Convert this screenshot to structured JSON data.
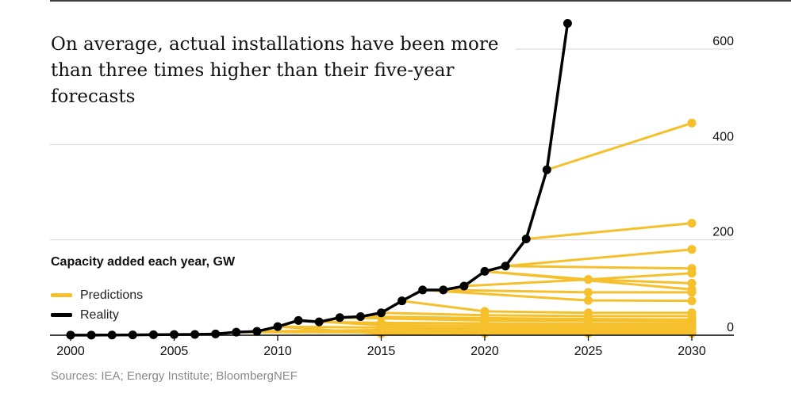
{
  "title": "On average, actual installations have been more than three times higher than their five-year forecasts",
  "legend": {
    "title": "Capacity added each year, GW",
    "items": [
      {
        "label": "Predictions",
        "color": "#f5c02c"
      },
      {
        "label": "Reality",
        "color": "#000000"
      }
    ]
  },
  "source": "Sources: IEA; Energy Institute; BloombergNEF",
  "chart_data": {
    "type": "line",
    "title": "On average, actual installations have been more than three times higher than their five-year forecasts",
    "ylabel": "Capacity added each year, GW",
    "xlim": [
      1999.5,
      2031.5
    ],
    "ylim": [
      0,
      650
    ],
    "x_ticks": [
      2000,
      2005,
      2010,
      2015,
      2020,
      2025,
      2030
    ],
    "y_ticks": [
      0,
      200,
      400,
      600
    ],
    "grid": "horizontal",
    "legend_position": "left",
    "series": [
      {
        "name": "Reality",
        "color": "#000000",
        "x": [
          2000,
          2001,
          2002,
          2003,
          2004,
          2005,
          2006,
          2007,
          2008,
          2009,
          2010,
          2011,
          2012,
          2013,
          2014,
          2015,
          2016,
          2017,
          2018,
          2019,
          2020,
          2021,
          2022,
          2023,
          2024
        ],
        "y": [
          0.3,
          0.3,
          0.4,
          0.6,
          1.0,
          1.4,
          1.6,
          2.7,
          6.5,
          8.0,
          18,
          31,
          28,
          37,
          39,
          47,
          72,
          95,
          95,
          103,
          134,
          145,
          202,
          347,
          654
        ]
      }
    ],
    "prediction_lines": [
      {
        "points": [
          [
            2023,
            347
          ],
          [
            2030,
            445
          ]
        ]
      },
      {
        "points": [
          [
            2022,
            202
          ],
          [
            2030,
            235
          ]
        ]
      },
      {
        "points": [
          [
            2021,
            145
          ],
          [
            2030,
            180
          ]
        ]
      },
      {
        "points": [
          [
            2021,
            145
          ],
          [
            2030,
            140
          ]
        ]
      },
      {
        "points": [
          [
            2020,
            134
          ],
          [
            2025,
            117
          ],
          [
            2030,
            109
          ]
        ]
      },
      {
        "points": [
          [
            2019,
            103
          ],
          [
            2025,
            117
          ],
          [
            2030,
            130
          ]
        ]
      },
      {
        "points": [
          [
            2020,
            134
          ],
          [
            2030,
            96
          ]
        ]
      },
      {
        "points": [
          [
            2018,
            95
          ],
          [
            2025,
            90
          ],
          [
            2030,
            90
          ]
        ]
      },
      {
        "points": [
          [
            2017,
            95
          ],
          [
            2025,
            73
          ],
          [
            2030,
            72
          ]
        ]
      },
      {
        "points": [
          [
            2016,
            72
          ],
          [
            2020,
            50
          ],
          [
            2025,
            47
          ],
          [
            2030,
            47
          ]
        ]
      },
      {
        "points": [
          [
            2015,
            47
          ],
          [
            2020,
            42
          ],
          [
            2025,
            40
          ],
          [
            2030,
            40
          ]
        ]
      },
      {
        "points": [
          [
            2014,
            39
          ],
          [
            2020,
            36
          ],
          [
            2025,
            34
          ],
          [
            2030,
            33
          ]
        ]
      },
      {
        "points": [
          [
            2013,
            37
          ],
          [
            2020,
            31
          ],
          [
            2025,
            30
          ],
          [
            2030,
            29
          ]
        ]
      },
      {
        "points": [
          [
            2012,
            28
          ],
          [
            2015,
            26
          ],
          [
            2020,
            25
          ],
          [
            2025,
            24
          ],
          [
            2030,
            24
          ]
        ]
      },
      {
        "points": [
          [
            2011,
            31
          ],
          [
            2015,
            21
          ],
          [
            2020,
            20
          ],
          [
            2025,
            20
          ],
          [
            2030,
            20
          ]
        ]
      },
      {
        "points": [
          [
            2010,
            18
          ],
          [
            2015,
            16
          ],
          [
            2020,
            15
          ],
          [
            2025,
            15
          ],
          [
            2030,
            15
          ]
        ]
      },
      {
        "points": [
          [
            2009,
            8
          ],
          [
            2015,
            11
          ],
          [
            2020,
            11
          ],
          [
            2025,
            11
          ],
          [
            2030,
            11
          ]
        ]
      },
      {
        "points": [
          [
            2008,
            6.5
          ],
          [
            2015,
            6
          ],
          [
            2020,
            7
          ],
          [
            2025,
            7
          ],
          [
            2030,
            7
          ]
        ]
      },
      {
        "points": [
          [
            2010,
            18
          ],
          [
            2015,
            3
          ],
          [
            2020,
            4
          ],
          [
            2025,
            4
          ],
          [
            2030,
            4
          ]
        ]
      }
    ]
  }
}
